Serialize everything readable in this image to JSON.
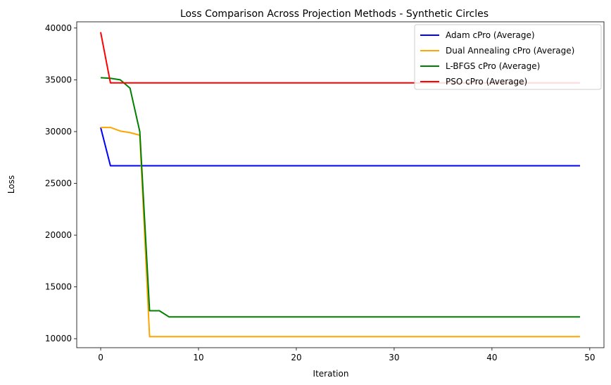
{
  "chart_data": {
    "type": "line",
    "title": "Loss Comparison Across Projection Methods - Synthetic Circles",
    "xlabel": "Iteration",
    "ylabel": "Loss",
    "xlim": [
      -2.45,
      51.45
    ],
    "ylim": [
      9130,
      40600
    ],
    "xticks": [
      0,
      10,
      20,
      30,
      40,
      50
    ],
    "xtick_labels": [
      "0",
      "10",
      "20",
      "30",
      "40",
      "50"
    ],
    "yticks": [
      10000,
      15000,
      20000,
      25000,
      30000,
      35000,
      40000
    ],
    "ytick_labels": [
      "10000",
      "15000",
      "20000",
      "25000",
      "30000",
      "35000",
      "40000"
    ],
    "grid": false,
    "legend_position": "top-right",
    "series": [
      {
        "name": "Adam cPro (Average)",
        "color": "#0000ff",
        "points": [
          [
            0,
            30400
          ],
          [
            1,
            26700
          ],
          [
            49,
            26700
          ]
        ]
      },
      {
        "name": "Dual Annealing cPro (Average)",
        "color": "#ffa500",
        "points": [
          [
            0,
            30400
          ],
          [
            1,
            30400
          ],
          [
            2,
            30050
          ],
          [
            3,
            29900
          ],
          [
            4,
            29650
          ],
          [
            5,
            10200
          ],
          [
            49,
            10200
          ]
        ]
      },
      {
        "name": "L-BFGS cPro (Average)",
        "color": "#008000",
        "points": [
          [
            0,
            35200
          ],
          [
            1,
            35150
          ],
          [
            2,
            35000
          ],
          [
            3,
            34200
          ],
          [
            4,
            30000
          ],
          [
            5,
            12700
          ],
          [
            6,
            12700
          ],
          [
            7,
            12100
          ],
          [
            49,
            12100
          ]
        ]
      },
      {
        "name": "PSO cPro (Average)",
        "color": "#ff0000",
        "points": [
          [
            0,
            39600
          ],
          [
            1,
            34700
          ],
          [
            49,
            34700
          ]
        ]
      }
    ]
  }
}
